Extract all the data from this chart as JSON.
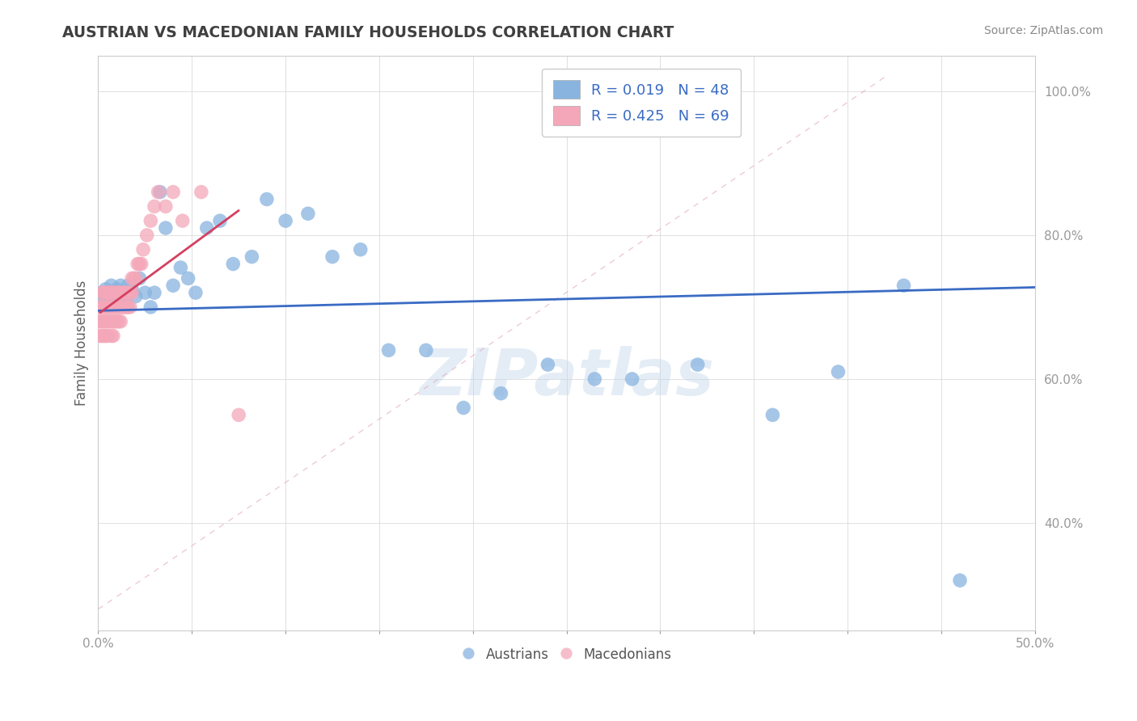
{
  "title": "AUSTRIAN VS MACEDONIAN FAMILY HOUSEHOLDS CORRELATION CHART",
  "source": "Source: ZipAtlas.com",
  "ylabel": "Family Households",
  "xlim": [
    0.0,
    0.5
  ],
  "ylim": [
    0.25,
    1.05
  ],
  "xticks": [
    0.0,
    0.05,
    0.1,
    0.15,
    0.2,
    0.25,
    0.3,
    0.35,
    0.4,
    0.45,
    0.5
  ],
  "yticks": [
    0.4,
    0.6,
    0.8,
    1.0
  ],
  "ytick_labels": [
    "40.0%",
    "60.0%",
    "80.0%",
    "100.0%"
  ],
  "legend_entries": [
    {
      "label": "R = 0.019   N = 48",
      "color": "#89b4e0"
    },
    {
      "label": "R = 0.425   N = 69",
      "color": "#f4a7b9"
    }
  ],
  "watermark": "ZIPatlas",
  "austrians": {
    "scatter_color": "#89b4e0",
    "line_color": "#3a6bc4",
    "x": [
      0.002,
      0.003,
      0.004,
      0.005,
      0.006,
      0.007,
      0.008,
      0.009,
      0.01,
      0.011,
      0.012,
      0.013,
      0.014,
      0.015,
      0.016,
      0.018,
      0.02,
      0.022,
      0.025,
      0.028,
      0.03,
      0.033,
      0.036,
      0.04,
      0.044,
      0.048,
      0.052,
      0.058,
      0.065,
      0.072,
      0.082,
      0.09,
      0.1,
      0.112,
      0.125,
      0.14,
      0.155,
      0.175,
      0.195,
      0.215,
      0.24,
      0.265,
      0.285,
      0.32,
      0.36,
      0.395,
      0.43,
      0.46
    ],
    "y": [
      0.72,
      0.71,
      0.725,
      0.715,
      0.705,
      0.73,
      0.72,
      0.715,
      0.725,
      0.705,
      0.73,
      0.72,
      0.71,
      0.715,
      0.73,
      0.725,
      0.715,
      0.74,
      0.72,
      0.7,
      0.72,
      0.86,
      0.81,
      0.73,
      0.755,
      0.74,
      0.72,
      0.81,
      0.82,
      0.76,
      0.77,
      0.85,
      0.82,
      0.83,
      0.77,
      0.78,
      0.64,
      0.64,
      0.56,
      0.58,
      0.62,
      0.6,
      0.6,
      0.62,
      0.55,
      0.61,
      0.73,
      0.32
    ]
  },
  "macedonians": {
    "scatter_color": "#f4a7b9",
    "line_color": "#d44060",
    "x": [
      0.001,
      0.001,
      0.001,
      0.002,
      0.002,
      0.002,
      0.002,
      0.003,
      0.003,
      0.003,
      0.003,
      0.004,
      0.004,
      0.004,
      0.004,
      0.005,
      0.005,
      0.005,
      0.005,
      0.006,
      0.006,
      0.006,
      0.007,
      0.007,
      0.007,
      0.007,
      0.008,
      0.008,
      0.008,
      0.008,
      0.009,
      0.009,
      0.009,
      0.01,
      0.01,
      0.01,
      0.011,
      0.011,
      0.011,
      0.012,
      0.012,
      0.012,
      0.013,
      0.013,
      0.014,
      0.014,
      0.015,
      0.015,
      0.016,
      0.016,
      0.017,
      0.017,
      0.018,
      0.018,
      0.019,
      0.02,
      0.021,
      0.022,
      0.023,
      0.024,
      0.026,
      0.028,
      0.03,
      0.032,
      0.036,
      0.04,
      0.045,
      0.055,
      0.075
    ],
    "y": [
      0.68,
      0.7,
      0.66,
      0.7,
      0.72,
      0.68,
      0.66,
      0.7,
      0.72,
      0.68,
      0.66,
      0.7,
      0.72,
      0.68,
      0.66,
      0.7,
      0.72,
      0.68,
      0.66,
      0.7,
      0.72,
      0.68,
      0.7,
      0.72,
      0.68,
      0.66,
      0.7,
      0.72,
      0.68,
      0.66,
      0.7,
      0.72,
      0.68,
      0.7,
      0.72,
      0.68,
      0.72,
      0.7,
      0.68,
      0.72,
      0.7,
      0.68,
      0.72,
      0.7,
      0.72,
      0.7,
      0.72,
      0.7,
      0.72,
      0.7,
      0.72,
      0.7,
      0.72,
      0.74,
      0.74,
      0.74,
      0.76,
      0.76,
      0.76,
      0.78,
      0.8,
      0.82,
      0.84,
      0.86,
      0.84,
      0.86,
      0.82,
      0.86,
      0.55
    ]
  },
  "background_color": "#ffffff",
  "grid_color": "#d8d8d8",
  "title_color": "#404040",
  "source_color": "#888888",
  "axis_label_color": "#606060"
}
